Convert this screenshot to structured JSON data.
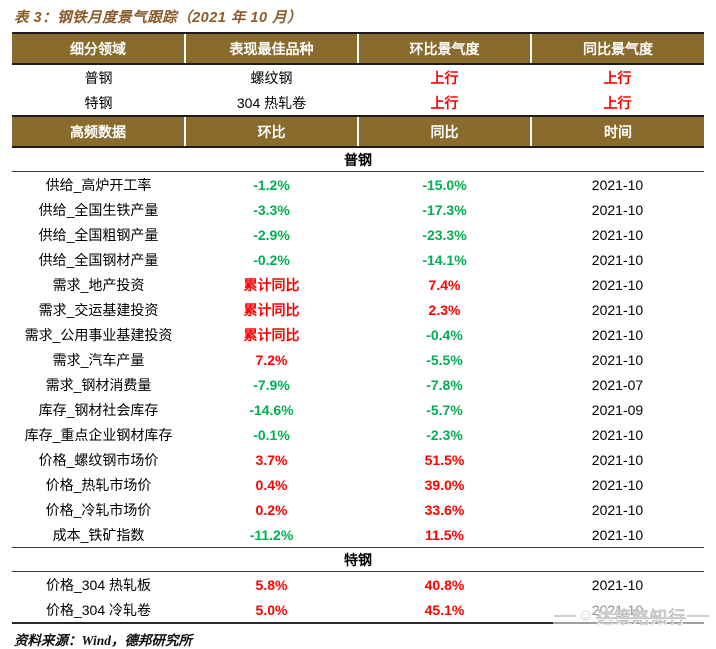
{
  "title": "表 3：钢铁月度景气跟踪（2021 年 10 月）",
  "colors": {
    "header_bg": "#8a6b2e",
    "title_brown": "#8a5a2b",
    "up_red": "#ff0000",
    "down_green": "#00b050"
  },
  "summary": {
    "headers": [
      "细分领域",
      "表现最佳品种",
      "环比景气度",
      "同比景气度"
    ],
    "rows": [
      {
        "field": "普钢",
        "best": "螺纹钢",
        "mom": {
          "text": "上行",
          "color": "red"
        },
        "yoy": {
          "text": "上行",
          "color": "red"
        }
      },
      {
        "field": "特钢",
        "best": "304 热轧卷",
        "mom": {
          "text": "上行",
          "color": "red"
        },
        "yoy": {
          "text": "上行",
          "color": "red"
        }
      }
    ]
  },
  "detail": {
    "headers": [
      "高频数据",
      "环比",
      "同比",
      "时间"
    ],
    "sections": [
      {
        "name": "普钢",
        "rows": [
          {
            "label": "供给_高炉开工率",
            "mom": {
              "text": "-1.2%",
              "color": "green"
            },
            "yoy": {
              "text": "-15.0%",
              "color": "green"
            },
            "date": "2021-10"
          },
          {
            "label": "供给_全国生铁产量",
            "mom": {
              "text": "-3.3%",
              "color": "green"
            },
            "yoy": {
              "text": "-17.3%",
              "color": "green"
            },
            "date": "2021-10"
          },
          {
            "label": "供给_全国粗钢产量",
            "mom": {
              "text": "-2.9%",
              "color": "green"
            },
            "yoy": {
              "text": "-23.3%",
              "color": "green"
            },
            "date": "2021-10"
          },
          {
            "label": "供给_全国钢材产量",
            "mom": {
              "text": "-0.2%",
              "color": "green"
            },
            "yoy": {
              "text": "-14.1%",
              "color": "green"
            },
            "date": "2021-10"
          },
          {
            "label": "需求_地产投资",
            "mom": {
              "text": "累计同比",
              "color": "red"
            },
            "yoy": {
              "text": "7.4%",
              "color": "red"
            },
            "date": "2021-10"
          },
          {
            "label": "需求_交运基建投资",
            "mom": {
              "text": "累计同比",
              "color": "red"
            },
            "yoy": {
              "text": "2.3%",
              "color": "red"
            },
            "date": "2021-10"
          },
          {
            "label": "需求_公用事业基建投资",
            "mom": {
              "text": "累计同比",
              "color": "red"
            },
            "yoy": {
              "text": "-0.4%",
              "color": "green"
            },
            "date": "2021-10"
          },
          {
            "label": "需求_汽车产量",
            "mom": {
              "text": "7.2%",
              "color": "red"
            },
            "yoy": {
              "text": "-5.5%",
              "color": "green"
            },
            "date": "2021-10"
          },
          {
            "label": "需求_钢材消费量",
            "mom": {
              "text": "-7.9%",
              "color": "green"
            },
            "yoy": {
              "text": "-7.8%",
              "color": "green"
            },
            "date": "2021-07"
          },
          {
            "label": "库存_钢材社会库存",
            "mom": {
              "text": "-14.6%",
              "color": "green"
            },
            "yoy": {
              "text": "-5.7%",
              "color": "green"
            },
            "date": "2021-09"
          },
          {
            "label": "库存_重点企业钢材库存",
            "mom": {
              "text": "-0.1%",
              "color": "green"
            },
            "yoy": {
              "text": "-2.3%",
              "color": "green"
            },
            "date": "2021-10"
          },
          {
            "label": "价格_螺纹钢市场价",
            "mom": {
              "text": "3.7%",
              "color": "red"
            },
            "yoy": {
              "text": "51.5%",
              "color": "red"
            },
            "date": "2021-10"
          },
          {
            "label": "价格_热轧市场价",
            "mom": {
              "text": "0.4%",
              "color": "red"
            },
            "yoy": {
              "text": "39.0%",
              "color": "red"
            },
            "date": "2021-10"
          },
          {
            "label": "价格_冷轧市场价",
            "mom": {
              "text": "0.2%",
              "color": "red"
            },
            "yoy": {
              "text": "33.6%",
              "color": "red"
            },
            "date": "2021-10"
          },
          {
            "label": "成本_铁矿指数",
            "mom": {
              "text": "-11.2%",
              "color": "green"
            },
            "yoy": {
              "text": "11.5%",
              "color": "red"
            },
            "date": "2021-10"
          }
        ]
      },
      {
        "name": "特钢",
        "rows": [
          {
            "label": "价格_304 热轧板",
            "mom": {
              "text": "5.8%",
              "color": "red"
            },
            "yoy": {
              "text": "40.8%",
              "color": "red"
            },
            "date": "2021-10"
          },
          {
            "label": "价格_304 冷轧卷",
            "mom": {
              "text": "5.0%",
              "color": "red"
            },
            "yoy": {
              "text": "45.1%",
              "color": "red"
            },
            "date": "2021-10"
          }
        ]
      }
    ]
  },
  "footer": {
    "source": "资料来源：Wind，德邦研究所"
  },
  "watermark": {
    "text": "达策略知行",
    "face_icon": "☺"
  }
}
